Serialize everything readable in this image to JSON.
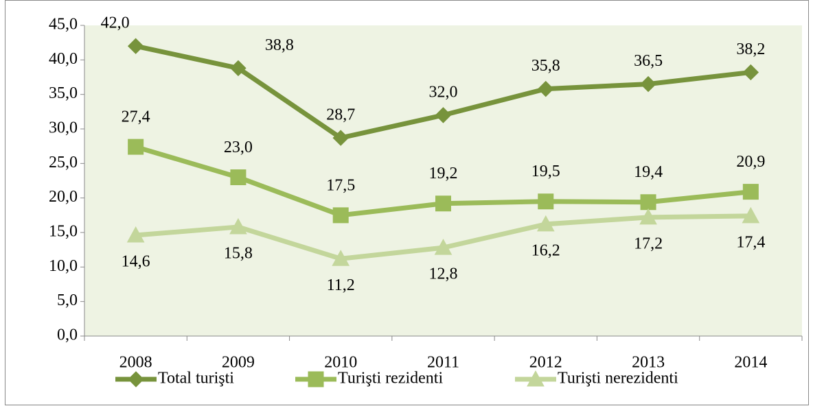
{
  "chart_data": {
    "type": "line",
    "categories": [
      "2008",
      "2009",
      "2010",
      "2011",
      "2012",
      "2013",
      "2014"
    ],
    "series": [
      {
        "name": "Total turişti",
        "color": "#77933c",
        "marker": "diamond",
        "values": [
          42.0,
          38.8,
          28.7,
          32.0,
          35.8,
          36.5,
          38.2
        ],
        "value_labels": [
          "42,0",
          "38,8",
          "28,7",
          "32,0",
          "35,8",
          "36,5",
          "38,2"
        ]
      },
      {
        "name": "Turişti rezidenti",
        "color": "#9bbb59",
        "marker": "square",
        "values": [
          27.4,
          23.0,
          17.5,
          19.2,
          19.5,
          19.4,
          20.9
        ],
        "value_labels": [
          "27,4",
          "23,0",
          "17,5",
          "19,2",
          "19,5",
          "19,4",
          "20,9"
        ]
      },
      {
        "name": "Turişti nerezidenti",
        "color": "#c3d69b",
        "marker": "triangle",
        "values": [
          14.6,
          15.8,
          11.2,
          12.8,
          16.2,
          17.2,
          17.4
        ],
        "value_labels": [
          "14,6",
          "15,8",
          "11,2",
          "12,8",
          "16,2",
          "17,2",
          "17,4"
        ]
      }
    ],
    "ylim": [
      0,
      45
    ],
    "yticks": [
      {
        "value": 0,
        "label": "0,0"
      },
      {
        "value": 5,
        "label": "5,0"
      },
      {
        "value": 10,
        "label": "10,0"
      },
      {
        "value": 15,
        "label": "15,0"
      },
      {
        "value": 20,
        "label": "20,0"
      },
      {
        "value": 25,
        "label": "25,0"
      },
      {
        "value": 30,
        "label": "30,0"
      },
      {
        "value": 35,
        "label": "35,0"
      },
      {
        "value": 40,
        "label": "40,0"
      },
      {
        "value": 45,
        "label": "45,0"
      }
    ],
    "grid": false,
    "legend": "bottom"
  }
}
